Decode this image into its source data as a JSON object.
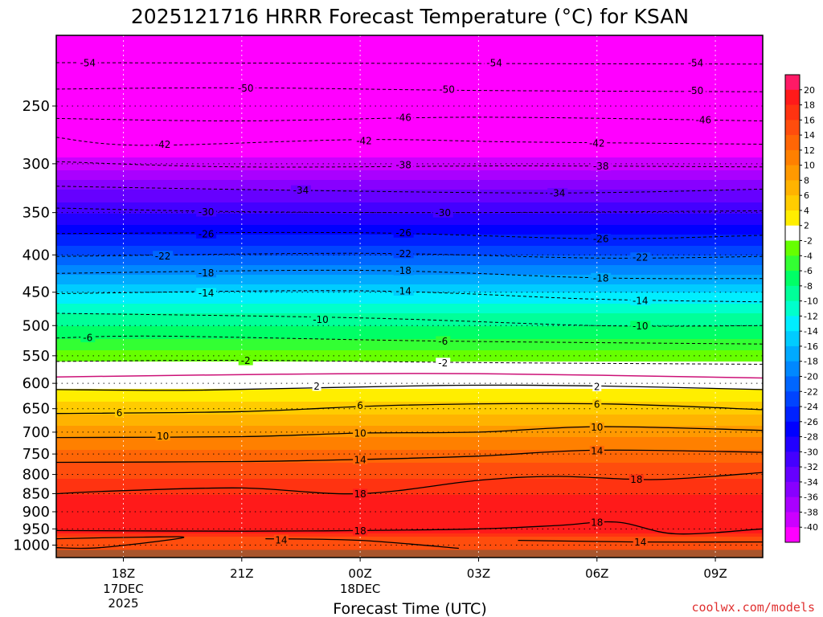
{
  "chart_data": {
    "type": "heatmap",
    "title": "2025121716 HRRR Forecast Temperature (°C) for KSAN",
    "xlabel": "Forecast Time (UTC)",
    "ylabel": "",
    "credit": "coolwx.com/models",
    "x_axis": {
      "range_hours_from_18Z": [
        -1.7,
        16.2
      ],
      "ticks": [
        {
          "hour": 0,
          "label": "18Z",
          "sub": [
            "17DEC",
            "2025"
          ]
        },
        {
          "hour": 3,
          "label": "21Z",
          "sub": []
        },
        {
          "hour": 6,
          "label": "00Z",
          "sub": [
            "18DEC"
          ]
        },
        {
          "hour": 9,
          "label": "03Z",
          "sub": []
        },
        {
          "hour": 12,
          "label": "06Z",
          "sub": []
        },
        {
          "hour": 15,
          "label": "09Z",
          "sub": []
        }
      ]
    },
    "y_axis": {
      "scale": "log",
      "reversed": true,
      "range_hPa": [
        200,
        1040
      ],
      "ticks": [
        250,
        300,
        350,
        400,
        450,
        500,
        550,
        600,
        650,
        700,
        750,
        800,
        850,
        900,
        950,
        1000
      ]
    },
    "colorbar": {
      "ticks": [
        20,
        18,
        16,
        14,
        12,
        10,
        8,
        6,
        4,
        2,
        -2,
        -4,
        -6,
        -8,
        -10,
        -12,
        -14,
        -16,
        -18,
        -20,
        -22,
        -24,
        -26,
        -28,
        -30,
        -32,
        -34,
        -36,
        -38,
        -40
      ],
      "colors": [
        "#ff1a66",
        "#ff1a1a",
        "#ff3311",
        "#ff4d0d",
        "#ff6606",
        "#ff8000",
        "#ff9900",
        "#ffb300",
        "#ffcc00",
        "#ffee00",
        "#ffffff",
        "#66ff00",
        "#33ff33",
        "#00ff66",
        "#00ff99",
        "#00ffcc",
        "#00eeff",
        "#00ccff",
        "#00aaff",
        "#0088ff",
        "#0066ff",
        "#0044ff",
        "#0022ff",
        "#0000ff",
        "#2200ff",
        "#4400ff",
        "#6600ff",
        "#8800ff",
        "#aa00ff",
        "#cc00ff",
        "#ff00ff"
      ]
    },
    "temperature_profile_at_18Z": [
      {
        "p": 200,
        "t": -60
      },
      {
        "p": 220,
        "t": -54
      },
      {
        "p": 240,
        "t": -50
      },
      {
        "p": 260,
        "t": -46
      },
      {
        "p": 280,
        "t": -42
      },
      {
        "p": 300,
        "t": -39
      },
      {
        "p": 325,
        "t": -34
      },
      {
        "p": 350,
        "t": -30
      },
      {
        "p": 375,
        "t": -26
      },
      {
        "p": 400,
        "t": -22
      },
      {
        "p": 425,
        "t": -18
      },
      {
        "p": 450,
        "t": -14
      },
      {
        "p": 480,
        "t": -10
      },
      {
        "p": 520,
        "t": -6
      },
      {
        "p": 560,
        "t": -2
      },
      {
        "p": 580,
        "t": 0
      },
      {
        "p": 610,
        "t": 2
      },
      {
        "p": 660,
        "t": 6
      },
      {
        "p": 710,
        "t": 10
      },
      {
        "p": 770,
        "t": 14
      },
      {
        "p": 850,
        "t": 18
      },
      {
        "p": 900,
        "t": 20
      },
      {
        "p": 960,
        "t": 18
      },
      {
        "p": 985,
        "t": 14
      }
    ],
    "terrain_hPa": 1015,
    "contours": [
      {
        "value": -54,
        "style": "dashed",
        "points": [
          [
            -1.7,
            218
          ],
          [
            16.2,
            219
          ]
        ],
        "labels": [
          [
            -0.9,
            218
          ],
          [
            9.4,
            218
          ],
          [
            14.5,
            218
          ]
        ]
      },
      {
        "value": -50,
        "style": "dashed",
        "points": [
          [
            -1.7,
            237
          ],
          [
            3,
            236
          ],
          [
            9,
            238
          ],
          [
            16.2,
            239
          ]
        ],
        "labels": [
          [
            3.1,
            236
          ],
          [
            8.2,
            237
          ],
          [
            14.5,
            238
          ]
        ]
      },
      {
        "value": -46,
        "style": "dashed",
        "points": [
          [
            -1.7,
            260
          ],
          [
            3,
            262
          ],
          [
            9,
            259
          ],
          [
            16.2,
            262
          ]
        ],
        "labels": [
          [
            7.1,
            259
          ],
          [
            14.7,
            261
          ]
        ]
      },
      {
        "value": -42,
        "style": "dashed",
        "points": [
          [
            -1.7,
            276
          ],
          [
            0.5,
            283
          ],
          [
            6,
            278
          ],
          [
            10,
            280
          ],
          [
            16.2,
            282
          ]
        ],
        "labels": [
          [
            1.0,
            282
          ],
          [
            6.1,
            279
          ],
          [
            12.0,
            281
          ]
        ]
      },
      {
        "value": -38,
        "style": "dashed",
        "points": [
          [
            -1.7,
            298
          ],
          [
            3,
            303
          ],
          [
            10,
            302
          ],
          [
            16.2,
            303
          ]
        ],
        "labels": [
          [
            7.1,
            301
          ],
          [
            12.1,
            302
          ]
        ]
      },
      {
        "value": -34,
        "style": "dashed",
        "points": [
          [
            -1.7,
            322
          ],
          [
            4,
            326
          ],
          [
            11,
            329
          ],
          [
            16.2,
            325
          ]
        ],
        "labels": [
          [
            4.5,
            326
          ],
          [
            11.0,
            329
          ]
        ]
      },
      {
        "value": -30,
        "style": "dashed",
        "points": [
          [
            -1.7,
            345
          ],
          [
            3,
            349
          ],
          [
            9,
            350
          ],
          [
            16.2,
            348
          ]
        ],
        "labels": [
          [
            2.1,
            349
          ],
          [
            8.1,
            350
          ]
        ]
      },
      {
        "value": -26,
        "style": "dashed",
        "points": [
          [
            -1.7,
            374
          ],
          [
            6,
            373
          ],
          [
            12,
            380
          ],
          [
            16.2,
            376
          ]
        ],
        "labels": [
          [
            2.1,
            374
          ],
          [
            7.1,
            373
          ],
          [
            12.1,
            380
          ]
        ]
      },
      {
        "value": -22,
        "style": "dashed",
        "points": [
          [
            -1.7,
            402
          ],
          [
            6,
            398
          ],
          [
            12,
            404
          ],
          [
            16.2,
            402
          ]
        ],
        "labels": [
          [
            1.0,
            401
          ],
          [
            7.1,
            398
          ],
          [
            13.1,
            403
          ]
        ]
      },
      {
        "value": -18,
        "style": "dashed",
        "points": [
          [
            -1.7,
            424
          ],
          [
            6,
            420
          ],
          [
            12,
            430
          ],
          [
            16.2,
            431
          ]
        ],
        "labels": [
          [
            2.1,
            423
          ],
          [
            7.1,
            420
          ],
          [
            12.1,
            430
          ]
        ]
      },
      {
        "value": -14,
        "style": "dashed",
        "points": [
          [
            -1.7,
            452
          ],
          [
            6,
            448
          ],
          [
            12,
            460
          ],
          [
            16.2,
            464
          ]
        ],
        "labels": [
          [
            2.1,
            451
          ],
          [
            7.1,
            448
          ],
          [
            13.1,
            462
          ]
        ]
      },
      {
        "value": -10,
        "style": "dashed",
        "points": [
          [
            -1.7,
            481
          ],
          [
            6,
            488
          ],
          [
            12,
            500
          ],
          [
            16.2,
            500
          ]
        ],
        "labels": [
          [
            5.0,
            490
          ],
          [
            13.1,
            500
          ]
        ]
      },
      {
        "value": -6,
        "style": "dashed",
        "points": [
          [
            -1.7,
            520
          ],
          [
            1,
            517
          ],
          [
            8,
            525
          ],
          [
            16.2,
            530
          ]
        ],
        "labels": [
          [
            -0.9,
            519
          ],
          [
            8.1,
            525
          ]
        ]
      },
      {
        "value": -2,
        "style": "dashed",
        "points": [
          [
            -1.7,
            560
          ],
          [
            3,
            558
          ],
          [
            9,
            562
          ],
          [
            16.2,
            565
          ]
        ],
        "labels": [
          [
            3.1,
            558
          ],
          [
            8.1,
            562
          ]
        ]
      },
      {
        "value": 0,
        "style": "zero",
        "points": [
          [
            -1.7,
            588
          ],
          [
            4,
            583
          ],
          [
            9,
            582
          ],
          [
            16.2,
            590
          ]
        ],
        "labels": []
      },
      {
        "value": 2,
        "style": "solid",
        "points": [
          [
            -1.7,
            612
          ],
          [
            2,
            613
          ],
          [
            8,
            604
          ],
          [
            12,
            605
          ],
          [
            16.2,
            612
          ]
        ],
        "labels": [
          [
            4.9,
            605
          ],
          [
            12.0,
            606
          ]
        ]
      },
      {
        "value": 6,
        "style": "solid",
        "points": [
          [
            -1.7,
            660
          ],
          [
            3,
            656
          ],
          [
            7,
            643
          ],
          [
            12,
            640
          ],
          [
            16.2,
            652
          ]
        ],
        "labels": [
          [
            -0.1,
            658
          ],
          [
            6.0,
            643
          ],
          [
            12.0,
            641
          ]
        ]
      },
      {
        "value": 10,
        "style": "solid",
        "points": [
          [
            -1.7,
            712
          ],
          [
            3,
            710
          ],
          [
            6,
            702
          ],
          [
            9,
            700
          ],
          [
            12,
            688
          ],
          [
            16.2,
            696
          ]
        ],
        "labels": [
          [
            1.0,
            708
          ],
          [
            6.0,
            702
          ],
          [
            12.0,
            689
          ]
        ]
      },
      {
        "value": 14,
        "style": "solid",
        "points": [
          [
            -1.7,
            770
          ],
          [
            3,
            768
          ],
          [
            6,
            763
          ],
          [
            9,
            755
          ],
          [
            12,
            741
          ],
          [
            16.2,
            746
          ]
        ],
        "labels": [
          [
            6.0,
            763
          ],
          [
            12.0,
            742
          ]
        ]
      },
      {
        "value": 18,
        "style": "solid",
        "points": [
          [
            -1.7,
            850
          ],
          [
            0,
            842
          ],
          [
            3,
            835
          ],
          [
            6,
            850
          ],
          [
            9,
            815
          ],
          [
            11,
            805
          ],
          [
            13.5,
            813
          ],
          [
            16.2,
            795
          ]
        ],
        "labels": [
          [
            6.0,
            850
          ],
          [
            13.0,
            812
          ]
        ]
      },
      {
        "value": 18,
        "style": "solid",
        "points": [
          [
            -1.7,
            955
          ],
          [
            3,
            957
          ],
          [
            6,
            955
          ],
          [
            9,
            950
          ],
          [
            11,
            940
          ],
          [
            12.5,
            930
          ],
          [
            14,
            965
          ],
          [
            16.2,
            950
          ]
        ],
        "labels": [
          [
            6.0,
            955
          ],
          [
            12.0,
            930
          ]
        ]
      },
      {
        "value": 14,
        "style": "solid",
        "points": [
          [
            -1.7,
            980
          ],
          [
            0.5,
            975
          ],
          [
            1.5,
            977
          ],
          [
            -0.6,
            1008
          ],
          [
            -1.7,
            1008
          ]
        ],
        "labels": []
      },
      {
        "value": 14,
        "style": "solid",
        "points": [
          [
            3.6,
            980
          ],
          [
            6,
            985
          ],
          [
            8.5,
            1010
          ]
        ],
        "labels": [
          [
            4.0,
            983
          ]
        ]
      },
      {
        "value": 14,
        "style": "solid",
        "points": [
          [
            10,
            985
          ],
          [
            13,
            990
          ],
          [
            16.2,
            990
          ]
        ],
        "labels": [
          [
            13.1,
            990
          ]
        ]
      }
    ]
  }
}
